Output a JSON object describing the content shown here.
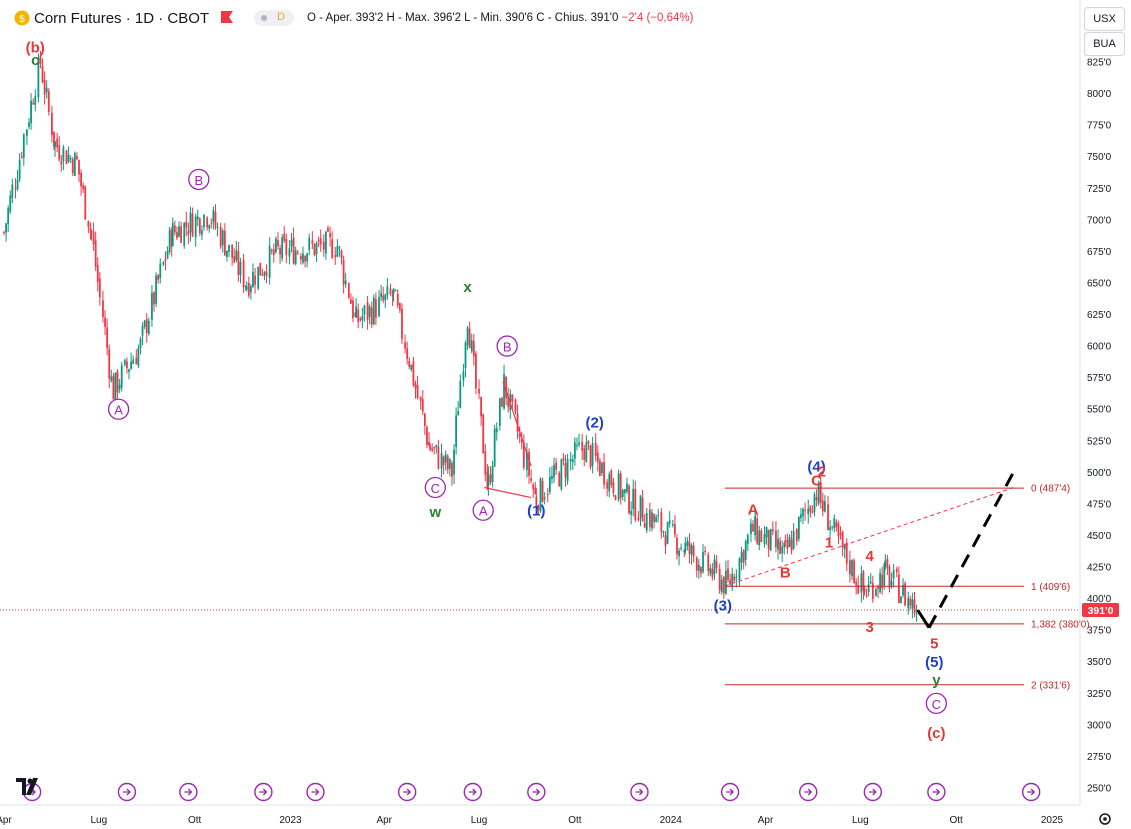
{
  "header": {
    "symbol_title": "Corn Futures · 1D · CBOT",
    "ohlc_text": "O - Aper. 393'2  H - Max. 396'2  L - Min. 390'6  C - Chius. 391'0",
    "change_text": "−2'4 (−0,64%)",
    "mode_badge": "D"
  },
  "right_panel": {
    "currency": "USX",
    "unit": "BUA"
  },
  "colors": {
    "up_candle": "#089981",
    "down_candle": "#f23645",
    "red_wave": "#e53935",
    "blue_wave": "#1e40c8",
    "purple_wave": "#9c27b0",
    "green_wave": "#2e7d32",
    "price_line": "#f23645",
    "fib_line": "#c62828"
  },
  "chart_data": {
    "type": "candlestick",
    "title": "Corn Futures · 1D · CBOT",
    "ylim": [
      240,
      835
    ],
    "y_ticks": [
      "825'0",
      "800'0",
      "775'0",
      "750'0",
      "725'0",
      "700'0",
      "675'0",
      "650'0",
      "625'0",
      "600'0",
      "575'0",
      "550'0",
      "525'0",
      "500'0",
      "475'0",
      "450'0",
      "425'0",
      "400'0",
      "375'0",
      "350'0",
      "325'0",
      "300'0",
      "275'0",
      "250'0"
    ],
    "x_ticks": [
      "Apr",
      "Lug",
      "Ott",
      "2023",
      "Apr",
      "Lug",
      "Ott",
      "2024",
      "Apr",
      "Lug",
      "Ott",
      "2025"
    ],
    "last_price_label": "391'0",
    "last_price": 391.0,
    "price_path": [
      {
        "date": "2022-04-01",
        "price": 690
      },
      {
        "date": "2022-05-06",
        "price": 825
      },
      {
        "date": "2022-05-20",
        "price": 760
      },
      {
        "date": "2022-06-10",
        "price": 745
      },
      {
        "date": "2022-06-24",
        "price": 690
      },
      {
        "date": "2022-07-15",
        "price": 565
      },
      {
        "date": "2022-08-10",
        "price": 600
      },
      {
        "date": "2022-09-10",
        "price": 690
      },
      {
        "date": "2022-10-15",
        "price": 705
      },
      {
        "date": "2022-11-20",
        "price": 650
      },
      {
        "date": "2022-12-20",
        "price": 675
      },
      {
        "date": "2023-02-15",
        "price": 680
      },
      {
        "date": "2023-03-05",
        "price": 620
      },
      {
        "date": "2023-04-10",
        "price": 640
      },
      {
        "date": "2023-04-25",
        "price": 590
      },
      {
        "date": "2023-05-15",
        "price": 520
      },
      {
        "date": "2023-06-05",
        "price": 500
      },
      {
        "date": "2023-06-20",
        "price": 625
      },
      {
        "date": "2023-07-10",
        "price": 490
      },
      {
        "date": "2023-07-25",
        "price": 570
      },
      {
        "date": "2023-08-25",
        "price": 480
      },
      {
        "date": "2023-10-10",
        "price": 520
      },
      {
        "date": "2023-11-20",
        "price": 480
      },
      {
        "date": "2024-01-15",
        "price": 440
      },
      {
        "date": "2024-02-25",
        "price": 410
      },
      {
        "date": "2024-03-20",
        "price": 455
      },
      {
        "date": "2024-04-20",
        "price": 435
      },
      {
        "date": "2024-05-20",
        "price": 485
      },
      {
        "date": "2024-06-10",
        "price": 445
      },
      {
        "date": "2024-07-05",
        "price": 405
      },
      {
        "date": "2024-07-25",
        "price": 420
      },
      {
        "date": "2024-08-25",
        "price": 391
      }
    ],
    "projection": [
      {
        "date": "2024-08-25",
        "price": 391
      },
      {
        "date": "2024-09-05",
        "price": 377
      },
      {
        "date": "2024-11-25",
        "price": 500
      }
    ],
    "fib_levels": [
      {
        "label": "0 (487'4)",
        "value": 487.5
      },
      {
        "label": "1 (409'6)",
        "value": 409.75
      },
      {
        "label": "1,382 (380'0)",
        "value": 380.0
      },
      {
        "label": "2 (331'6)",
        "value": 331.75
      }
    ],
    "wave_labels": [
      {
        "text": "(b)",
        "date": "2022-05-01",
        "price": 837,
        "color": "red"
      },
      {
        "text": "c",
        "date": "2022-05-01",
        "price": 827,
        "color": "green"
      },
      {
        "text": "A",
        "date": "2022-07-20",
        "price": 550,
        "color": "purple",
        "circled": true
      },
      {
        "text": "B",
        "date": "2022-10-05",
        "price": 732,
        "color": "purple",
        "circled": true
      },
      {
        "text": "C",
        "date": "2023-05-20",
        "price": 488,
        "color": "purple",
        "circled": true
      },
      {
        "text": "w",
        "date": "2023-05-20",
        "price": 469,
        "color": "green"
      },
      {
        "text": "x",
        "date": "2023-06-20",
        "price": 647,
        "color": "green"
      },
      {
        "text": "B",
        "date": "2023-07-28",
        "price": 600,
        "color": "purple",
        "circled": true
      },
      {
        "text": "A",
        "date": "2023-07-05",
        "price": 470,
        "color": "purple",
        "circled": true
      },
      {
        "text": "(1)",
        "date": "2023-08-25",
        "price": 470,
        "color": "blue"
      },
      {
        "text": "(2)",
        "date": "2023-10-20",
        "price": 540,
        "color": "blue"
      },
      {
        "text": "(3)",
        "date": "2024-02-20",
        "price": 395,
        "color": "blue"
      },
      {
        "text": "(4)",
        "date": "2024-05-20",
        "price": 505,
        "color": "blue"
      },
      {
        "text": "2",
        "date": "2024-05-25",
        "price": 501,
        "color": "red"
      },
      {
        "text": "C",
        "date": "2024-05-20",
        "price": 494,
        "color": "red"
      },
      {
        "text": "A",
        "date": "2024-03-20",
        "price": 471,
        "color": "red"
      },
      {
        "text": "B",
        "date": "2024-04-20",
        "price": 421,
        "color": "red"
      },
      {
        "text": "1",
        "date": "2024-06-01",
        "price": 445,
        "color": "red"
      },
      {
        "text": "4",
        "date": "2024-07-10",
        "price": 434,
        "color": "red"
      },
      {
        "text": "3",
        "date": "2024-07-10",
        "price": 378,
        "color": "red"
      },
      {
        "text": "5",
        "date": "2024-09-10",
        "price": 365,
        "color": "red"
      },
      {
        "text": "(5)",
        "date": "2024-09-10",
        "price": 350,
        "color": "blue"
      },
      {
        "text": "y",
        "date": "2024-09-12",
        "price": 336,
        "color": "green"
      },
      {
        "text": "C",
        "date": "2024-09-12",
        "price": 317,
        "color": "purple",
        "circled": true
      },
      {
        "text": "(c)",
        "date": "2024-09-12",
        "price": 294,
        "color": "red"
      }
    ]
  }
}
